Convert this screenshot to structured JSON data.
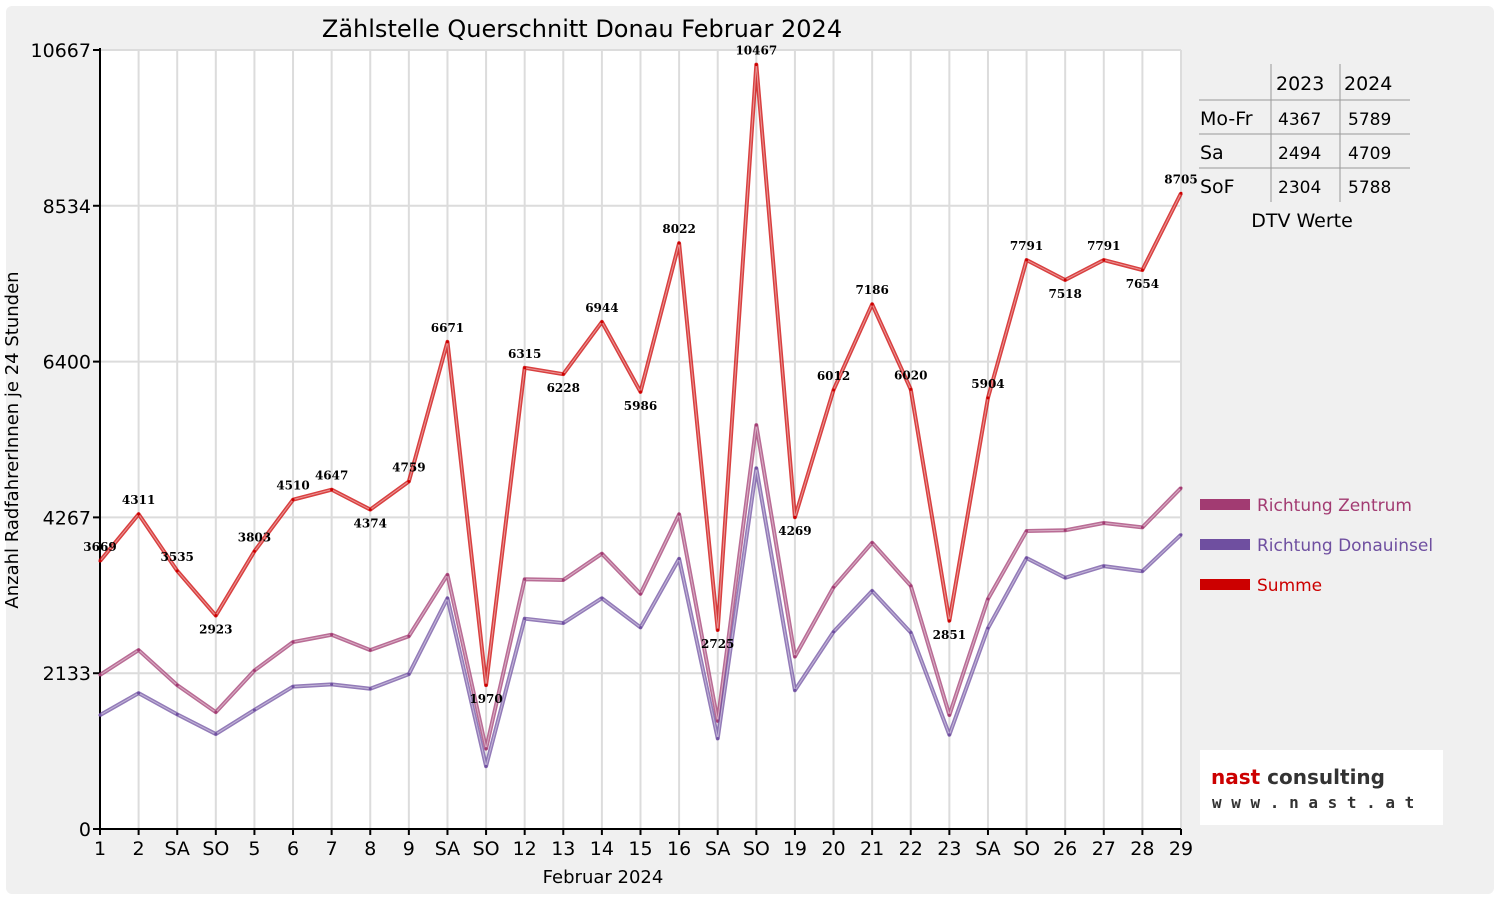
{
  "chart_data": {
    "type": "line",
    "title": "Zählstelle Querschnitt Donau Februar 2024",
    "xlabel": "Februar 2024",
    "ylabel": "Anzahl RadfahrerInnen je 24 Stunden",
    "ylim": [
      0,
      10667
    ],
    "yticks": [
      "0",
      "2133",
      "4267",
      "6400",
      "8534",
      "10667"
    ],
    "ytick_values": [
      0,
      2133,
      4267,
      6400,
      8534,
      10667
    ],
    "categories": [
      "1",
      "2",
      "SA",
      "SO",
      "5",
      "6",
      "7",
      "8",
      "9",
      "SA",
      "SO",
      "12",
      "13",
      "14",
      "15",
      "16",
      "SA",
      "SO",
      "19",
      "20",
      "21",
      "22",
      "23",
      "SA",
      "SO",
      "26",
      "27",
      "28",
      "29"
    ],
    "highlight_categories": [
      "SO"
    ],
    "highlight_color": "#ff0000",
    "grid": true,
    "legend_position": "right",
    "series": [
      {
        "name": "Richtung Zentrum",
        "color": "#a23b72",
        "values": [
          2110,
          2450,
          1970,
          1600,
          2170,
          2560,
          2660,
          2450,
          2640,
          3480,
          1100,
          3420,
          3410,
          3770,
          3220,
          4310,
          1480,
          5530,
          2360,
          3310,
          3920,
          3330,
          1560,
          3150,
          4080,
          4090,
          4190,
          4130,
          4670
        ]
      },
      {
        "name": "Richtung Donauinsel",
        "color": "#6f4fa0",
        "values": [
          1560,
          1860,
          1570,
          1300,
          1630,
          1950,
          1980,
          1920,
          2120,
          3160,
          860,
          2880,
          2820,
          3160,
          2760,
          3700,
          1240,
          4940,
          1900,
          2700,
          3260,
          2690,
          1290,
          2750,
          3710,
          3440,
          3600,
          3530,
          4030
        ]
      },
      {
        "name": "Summe",
        "color": "#cc0000",
        "values": [
          3669,
          4311,
          3535,
          2923,
          3803,
          4510,
          4647,
          4374,
          4759,
          6671,
          1970,
          6315,
          6228,
          6944,
          5986,
          8022,
          2725,
          10467,
          4269,
          6012,
          7186,
          6020,
          2851,
          5904,
          7791,
          7518,
          7791,
          7654,
          8705
        ],
        "labels": [
          "3669",
          "4311",
          "3535",
          "2923",
          "3803",
          "4510",
          "4647",
          "4374",
          "4759",
          "6671",
          "1970",
          "6315",
          "6228",
          "6944",
          "5986",
          "8022",
          "2725",
          "10467",
          "4269",
          "6012",
          "7186",
          "6020",
          "2851",
          "5904",
          "7791",
          "7518",
          "7791",
          "7654",
          "8705"
        ]
      }
    ],
    "dtv_table": {
      "headers": [
        "2023",
        "2024"
      ],
      "rows": [
        {
          "label": "Mo-Fr",
          "v2023": "4367",
          "v2024": "5789"
        },
        {
          "label": "Sa",
          "v2023": "2494",
          "v2024": "4709"
        },
        {
          "label": "SoF",
          "v2023": "2304",
          "v2024": "5788"
        }
      ],
      "caption": "DTV Werte"
    }
  },
  "logo": {
    "name": "nast consulting",
    "url": "w w w . n a s t . a t"
  }
}
